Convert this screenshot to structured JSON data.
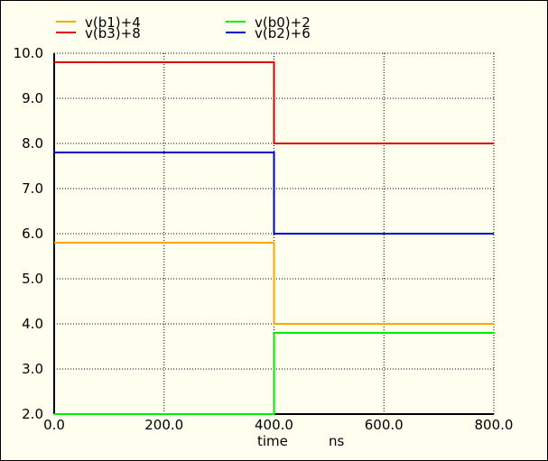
{
  "chart_data": {
    "type": "line",
    "x_label": "time",
    "x_unit": "ns",
    "xlim": [
      0,
      800
    ],
    "ylim": [
      2,
      10
    ],
    "x_ticks": [
      "0.0",
      "200.0",
      "400.0",
      "600.0",
      "800.0"
    ],
    "y_ticks": [
      "2.0",
      "3.0",
      "4.0",
      "5.0",
      "6.0",
      "7.0",
      "8.0",
      "9.0",
      "10.0"
    ],
    "grid": true,
    "legend_position": "top",
    "series": [
      {
        "name": "v(b1)+4",
        "color": "#ffa500",
        "x": [
          0,
          400,
          400,
          800
        ],
        "y": [
          5.8,
          5.8,
          4.0,
          4.0
        ]
      },
      {
        "name": "v(b0)+2",
        "color": "#00ee00",
        "x": [
          0,
          400,
          400,
          800
        ],
        "y": [
          2.0,
          2.0,
          3.8,
          3.8
        ]
      },
      {
        "name": "v(b3)+8",
        "color": "#dd0000",
        "x": [
          0,
          400,
          400,
          800
        ],
        "y": [
          9.8,
          9.8,
          8.0,
          8.0
        ]
      },
      {
        "name": "v(b2)+6",
        "color": "#0000cc",
        "x": [
          0,
          400,
          400,
          800
        ],
        "y": [
          7.8,
          7.8,
          6.0,
          6.0
        ]
      }
    ]
  }
}
